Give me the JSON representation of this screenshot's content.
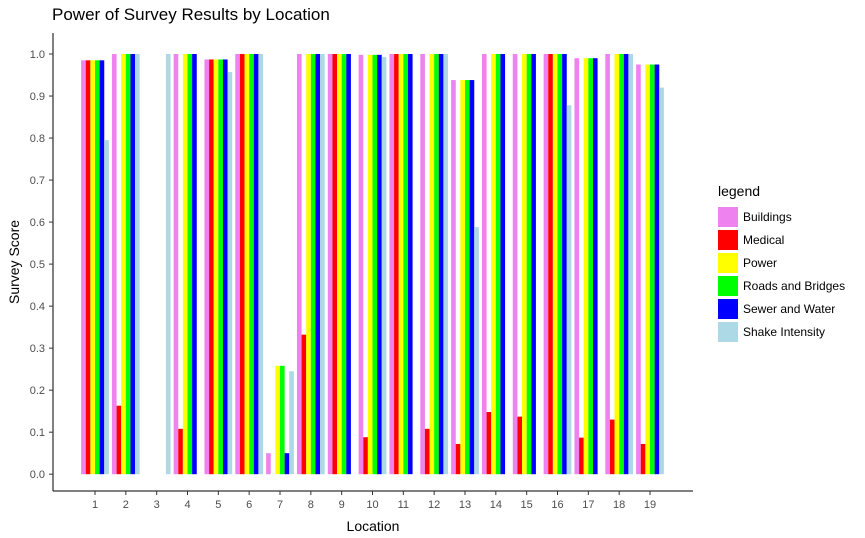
{
  "chart_data": {
    "type": "bar",
    "title": "Power of Survey Results by Location",
    "xlabel": "Location",
    "ylabel": "Survey Score",
    "ylim": [
      -0.04,
      1.05
    ],
    "yticks": [
      "0.0",
      "0.1",
      "0.2",
      "0.3",
      "0.4",
      "0.5",
      "0.6",
      "0.7",
      "0.8",
      "0.9",
      "1.0"
    ],
    "categories": [
      "1",
      "2",
      "3",
      "4",
      "5",
      "6",
      "7",
      "8",
      "9",
      "10",
      "11",
      "12",
      "13",
      "14",
      "15",
      "16",
      "17",
      "18",
      "19"
    ],
    "grid": false,
    "legend_title": "legend",
    "legend_position": "right",
    "series": [
      {
        "name": "Buildings",
        "color": "#EE82EE",
        "values": [
          0.985,
          1.0,
          null,
          1.0,
          0.987,
          1.0,
          0.05,
          1.0,
          1.0,
          0.998,
          1.0,
          1.0,
          0.938,
          1.0,
          1.0,
          1.0,
          0.99,
          1.0,
          0.975
        ]
      },
      {
        "name": "Medical",
        "color": "#FF0000",
        "values": [
          0.985,
          0.163,
          null,
          0.108,
          0.987,
          1.0,
          null,
          0.332,
          1.0,
          0.088,
          1.0,
          0.108,
          0.072,
          0.148,
          0.137,
          1.0,
          0.087,
          0.13,
          0.072
        ]
      },
      {
        "name": "Power",
        "color": "#FFFF00",
        "values": [
          0.985,
          1.0,
          null,
          1.0,
          0.987,
          1.0,
          0.258,
          1.0,
          1.0,
          0.998,
          1.0,
          1.0,
          0.938,
          1.0,
          1.0,
          1.0,
          0.99,
          1.0,
          0.975
        ]
      },
      {
        "name": "Roads and Bridges",
        "color": "#00FF00",
        "values": [
          0.985,
          1.0,
          null,
          1.0,
          0.987,
          1.0,
          0.258,
          1.0,
          1.0,
          0.998,
          1.0,
          1.0,
          0.938,
          1.0,
          1.0,
          1.0,
          0.99,
          1.0,
          0.975
        ]
      },
      {
        "name": "Sewer and Water",
        "color": "#0000FF",
        "values": [
          0.985,
          1.0,
          null,
          1.0,
          0.987,
          1.0,
          0.05,
          1.0,
          1.0,
          0.998,
          1.0,
          1.0,
          0.938,
          1.0,
          1.0,
          1.0,
          0.99,
          1.0,
          0.975
        ]
      },
      {
        "name": "Shake Intensity",
        "color": "#ADD8E6",
        "values": [
          0.795,
          1.0,
          1.0,
          null,
          0.957,
          1.0,
          0.245,
          1.0,
          null,
          0.993,
          null,
          1.0,
          0.588,
          null,
          null,
          0.878,
          null,
          1.0,
          0.92
        ]
      }
    ]
  }
}
